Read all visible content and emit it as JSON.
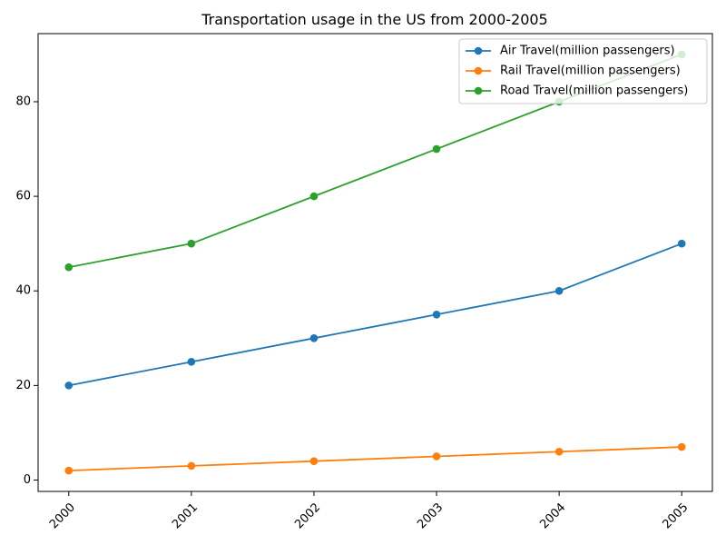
{
  "chart_data": {
    "type": "line",
    "title": "Transportation usage in the US from 2000-2005",
    "xlabel": "",
    "ylabel": "",
    "categories": [
      "2000",
      "2001",
      "2002",
      "2003",
      "2004",
      "2005"
    ],
    "x": [
      2000,
      2001,
      2002,
      2003,
      2004,
      2005
    ],
    "xlim": [
      1999.75,
      2005.25
    ],
    "ylim": [
      -2.4,
      94.4
    ],
    "yticks": [
      0,
      20,
      40,
      60,
      80
    ],
    "xtick_rotation": 45,
    "grid": false,
    "legend_position": "top-right",
    "marker": "circle",
    "series": [
      {
        "name": "Air Travel(million passengers)",
        "color": "#1f77b4",
        "values": [
          20,
          25,
          30,
          35,
          40,
          50
        ]
      },
      {
        "name": "Rail Travel(million passengers)",
        "color": "#ff7f0e",
        "values": [
          2,
          3,
          4,
          5,
          6,
          7
        ]
      },
      {
        "name": "Road Travel(million passengers)",
        "color": "#2ca02c",
        "values": [
          45,
          50,
          60,
          70,
          80,
          90
        ]
      }
    ]
  }
}
